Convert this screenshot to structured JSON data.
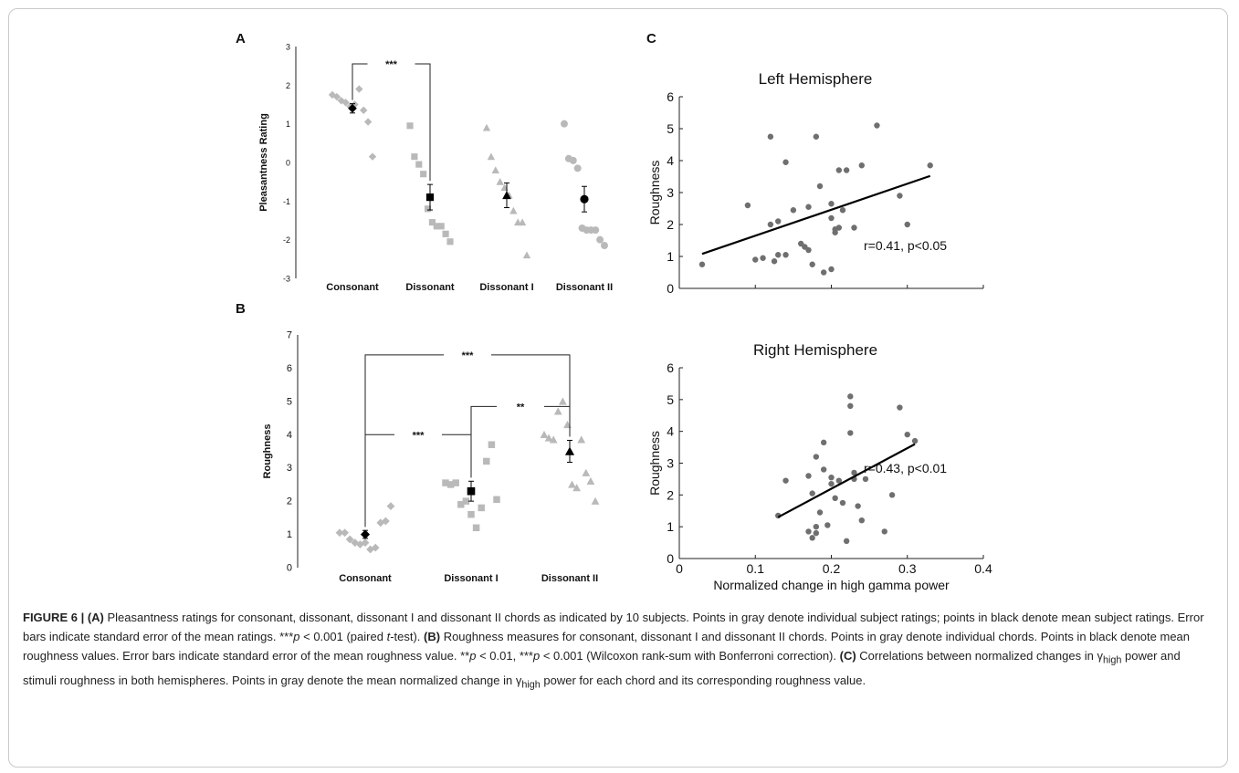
{
  "chart_data": [
    {
      "panel": "A",
      "type": "scatter",
      "ylabel": "Pleasantness Rating",
      "ylim": [
        -3,
        3
      ],
      "yticks": [
        -3,
        -2,
        -1,
        0,
        1,
        2,
        3
      ],
      "categories": [
        "Consonant",
        "Dissonant",
        "Dissonant I",
        "Dissonant II"
      ],
      "individual": [
        [
          1.75,
          1.7,
          1.6,
          1.55,
          1.45,
          1.5,
          1.9,
          1.35,
          1.05,
          0.15
        ],
        [
          0.95,
          0.15,
          -0.05,
          -0.3,
          -1.2,
          -1.55,
          -1.65,
          -1.65,
          -1.85,
          -2.05
        ],
        [
          0.9,
          0.15,
          -0.2,
          -0.5,
          -0.65,
          -0.85,
          -1.25,
          -1.55,
          -1.55,
          -2.4
        ],
        [
          1.0,
          0.1,
          0.05,
          -0.15,
          -1.7,
          -1.75,
          -1.75,
          -1.75,
          -2.0,
          -2.15
        ]
      ],
      "means": [
        1.4,
        -0.9,
        -0.85,
        -0.95
      ],
      "errors": [
        0.12,
        0.33,
        0.32,
        0.33
      ],
      "markers": [
        "diamond",
        "square",
        "triangle",
        "circle"
      ],
      "significance": [
        {
          "from": 0,
          "to": 1,
          "label": "***",
          "level": 2.55
        }
      ]
    },
    {
      "panel": "B",
      "type": "scatter",
      "ylabel": "Roughness",
      "ylim": [
        0,
        7
      ],
      "yticks": [
        0,
        1,
        2,
        3,
        4,
        5,
        6,
        7
      ],
      "categories": [
        "Consonant",
        "Dissonant I",
        "Dissonant II"
      ],
      "individual": [
        [
          1.05,
          1.05,
          0.85,
          0.75,
          0.7,
          0.75,
          0.55,
          0.6,
          1.35,
          1.4,
          1.85
        ],
        [
          2.55,
          2.5,
          2.55,
          1.9,
          2.0,
          1.6,
          1.2,
          1.8,
          3.2,
          3.7,
          2.05
        ],
        [
          4.0,
          3.9,
          3.85,
          4.7,
          5.0,
          4.3,
          2.5,
          2.4,
          3.85,
          2.85,
          2.6,
          2.0
        ]
      ],
      "means": [
        1.0,
        2.3,
        3.5
      ],
      "errors": [
        0.12,
        0.3,
        0.33
      ],
      "markers": [
        "diamond",
        "square",
        "triangle"
      ],
      "significance": [
        {
          "from": 0,
          "to": 2,
          "label": "***",
          "level": 6.4
        },
        {
          "from": 1,
          "to": 2,
          "label": "**",
          "level": 4.85
        },
        {
          "from": 0,
          "to": 1,
          "label": "***",
          "level": 4.0
        }
      ]
    },
    {
      "panel": "C",
      "type": "scatter",
      "title": "Left Hemisphere",
      "ylabel": "Roughness",
      "xlim": [
        0,
        0.4
      ],
      "ylim": [
        0,
        6
      ],
      "yticks": [
        0,
        1,
        2,
        3,
        4,
        5,
        6
      ],
      "x": [
        0.03,
        0.09,
        0.1,
        0.11,
        0.12,
        0.12,
        0.125,
        0.13,
        0.13,
        0.14,
        0.14,
        0.15,
        0.16,
        0.165,
        0.17,
        0.17,
        0.175,
        0.18,
        0.185,
        0.19,
        0.2,
        0.2,
        0.2,
        0.205,
        0.205,
        0.21,
        0.21,
        0.215,
        0.22,
        0.23,
        0.24,
        0.26,
        0.29,
        0.3,
        0.33
      ],
      "y": [
        0.75,
        2.6,
        0.9,
        0.95,
        2.0,
        4.75,
        0.85,
        2.1,
        1.05,
        3.95,
        1.05,
        2.45,
        1.4,
        1.3,
        1.2,
        2.55,
        0.75,
        4.75,
        3.2,
        0.5,
        0.6,
        2.65,
        2.2,
        1.85,
        1.75,
        3.7,
        1.9,
        2.45,
        3.7,
        1.9,
        3.85,
        5.1,
        2.9,
        2.0,
        3.85
      ],
      "fit": {
        "x": [
          0.03,
          0.33
        ],
        "y": [
          1.08,
          3.52
        ]
      },
      "annotation": "r=0.41, p<0.05"
    },
    {
      "panel": "C",
      "type": "scatter",
      "title": "Right Hemisphere",
      "xlabel": "Normalized change in high gamma power",
      "ylabel": "Roughness",
      "xlim": [
        0,
        0.4
      ],
      "ylim": [
        0,
        6
      ],
      "xticks": [
        0,
        0.1,
        0.2,
        0.3,
        0.4
      ],
      "yticks": [
        0,
        1,
        2,
        3,
        4,
        5,
        6
      ],
      "x": [
        0.13,
        0.14,
        0.17,
        0.17,
        0.175,
        0.175,
        0.18,
        0.18,
        0.18,
        0.185,
        0.19,
        0.19,
        0.195,
        0.2,
        0.2,
        0.205,
        0.21,
        0.215,
        0.22,
        0.225,
        0.225,
        0.225,
        0.23,
        0.23,
        0.235,
        0.24,
        0.245,
        0.27,
        0.28,
        0.29,
        0.3,
        0.31
      ],
      "y": [
        1.35,
        2.45,
        0.85,
        2.6,
        2.05,
        0.65,
        1.0,
        0.8,
        3.2,
        1.45,
        2.8,
        3.65,
        1.05,
        2.35,
        2.55,
        1.9,
        2.45,
        1.75,
        0.55,
        4.8,
        5.1,
        3.95,
        2.7,
        2.5,
        1.65,
        1.2,
        2.5,
        0.85,
        2.0,
        4.75,
        3.9,
        3.7
      ],
      "fit": {
        "x": [
          0.13,
          0.31
        ],
        "y": [
          1.3,
          3.6
        ]
      },
      "annotation": "r=0.43, p<0.01"
    }
  ],
  "panel_labels": [
    "A",
    "B",
    "C"
  ],
  "colors": {
    "individual": "#b9b9b9",
    "mean": "#000000",
    "scatter": "#6f6f6f",
    "fit": "#000000",
    "frame": "#c9c9c9"
  },
  "caption": {
    "fig": "FIGURE 6 | ",
    "a_label": "(A)",
    "a_text": " Pleasantness ratings for consonant, dissonant, dissonant I and dissonant II chords as indicated by 10 subjects. Points in gray denote individual subject ratings; points in black denote mean subject ratings. Error bars indicate standard error of the mean ratings. ",
    "a_stat": "***",
    "a_p": "p",
    "a_stat_rest": " < 0.001 (paired ",
    "a_t": "t",
    "a_end": "-test). ",
    "b_label": "(B)",
    "b_text": " Roughness measures for consonant, dissonant I and dissonant II chords. Points in gray denote individual chords. Points in black denote mean roughness values. Error bars indicate standard error of the mean roughness value. ",
    "b_stat1": "**",
    "b_p1": "p",
    "b_stat1_rest": " < 0.01, ",
    "b_stat2": "***",
    "b_p2": "p",
    "b_stat2_rest": " < 0.001 (Wilcoxon rank-sum with Bonferroni correction). ",
    "c_label": "(C)",
    "c_text1": " Correlations between normalized changes in ",
    "gamma": "γ",
    "high": "high",
    "c_text2": " power and stimuli roughness in both hemispheres. Points in gray denote the mean normalized change in ",
    "c_text3": " power for each chord and its corresponding roughness value."
  }
}
